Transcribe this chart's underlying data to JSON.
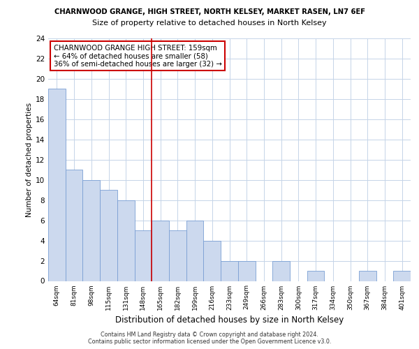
{
  "title": "CHARNWOOD GRANGE, HIGH STREET, NORTH KELSEY, MARKET RASEN, LN7 6EF",
  "subtitle": "Size of property relative to detached houses in North Kelsey",
  "xlabel": "Distribution of detached houses by size in North Kelsey",
  "ylabel": "Number of detached properties",
  "bin_labels": [
    "64sqm",
    "81sqm",
    "98sqm",
    "115sqm",
    "131sqm",
    "148sqm",
    "165sqm",
    "182sqm",
    "199sqm",
    "216sqm",
    "233sqm",
    "249sqm",
    "266sqm",
    "283sqm",
    "300sqm",
    "317sqm",
    "334sqm",
    "350sqm",
    "367sqm",
    "384sqm",
    "401sqm"
  ],
  "bar_values": [
    19,
    11,
    10,
    9,
    8,
    5,
    6,
    5,
    6,
    4,
    2,
    2,
    0,
    2,
    0,
    1,
    0,
    0,
    1,
    0,
    1
  ],
  "bar_color": "#ccd9ee",
  "subject_line_color": "#cc0000",
  "subject_line_index": 6,
  "annotation_text": "CHARNWOOD GRANGE HIGH STREET: 159sqm\n← 64% of detached houses are smaller (58)\n36% of semi-detached houses are larger (32) →",
  "annotation_box_color": "#ffffff",
  "annotation_box_edge_color": "#cc0000",
  "ylim": [
    0,
    24
  ],
  "yticks": [
    0,
    2,
    4,
    6,
    8,
    10,
    12,
    14,
    16,
    18,
    20,
    22,
    24
  ],
  "footer_text": "Contains HM Land Registry data © Crown copyright and database right 2024.\nContains public sector information licensed under the Open Government Licence v3.0.",
  "background_color": "#ffffff",
  "grid_color": "#c5d4e8"
}
